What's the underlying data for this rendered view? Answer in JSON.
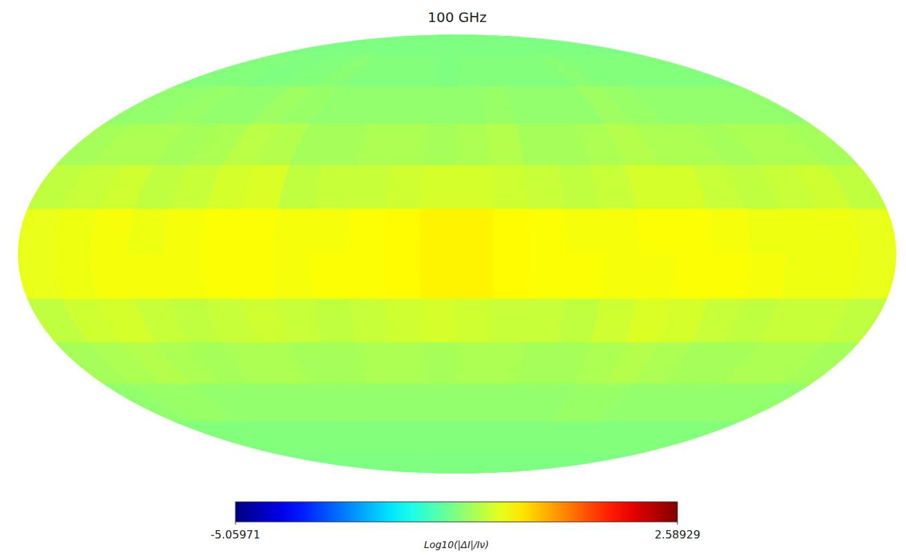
{
  "chart_data": {
    "type": "heatmap",
    "title": "100 GHz",
    "colorbar": {
      "label": "Log10(|ΔI|/Iν)",
      "range": [
        -5.05971,
        2.58929
      ],
      "ticks": [
        -5.05971,
        2.58929
      ]
    },
    "cells": [
      [
        -1.25,
        -1.25,
        -1.25,
        -1.25,
        -1.25,
        -1.25,
        -1.25,
        -1.25,
        -1.25,
        -1.25,
        -1.25,
        -1.25,
        -1.25,
        -1.25,
        -1.25,
        -1.25,
        -1.25,
        -1.25,
        -1.25,
        -1.25,
        -1.25,
        -1.25,
        -1.25,
        -1.25
      ],
      [
        -1.2,
        -1.2,
        -1.2,
        -1.25,
        -1.2,
        -1.2,
        -1.15,
        -1.2,
        -1.2,
        -1.2,
        -1.2,
        -1.25,
        -1.2,
        -1.2,
        -1.2,
        -1.2,
        -1.2,
        -1.15,
        -1.2,
        -1.2,
        -1.2,
        -1.2,
        -1.2,
        -1.2
      ],
      [
        -1.1,
        -1.1,
        -1.05,
        -1.1,
        -1.1,
        -1.0,
        -1.05,
        -1.1,
        -1.1,
        -1.1,
        -1.1,
        -1.1,
        -1.1,
        -1.05,
        -1.1,
        -1.1,
        -1.1,
        -1.0,
        -1.05,
        -1.1,
        -1.1,
        -1.1,
        -1.1,
        -1.1
      ],
      [
        -0.95,
        -0.9,
        -0.9,
        -0.95,
        -0.9,
        -0.8,
        -0.85,
        -0.95,
        -0.95,
        -0.9,
        -0.9,
        -0.95,
        -0.9,
        -0.85,
        -0.95,
        -0.95,
        -0.9,
        -0.85,
        -0.9,
        -0.9,
        -0.95,
        -0.9,
        -0.9,
        -0.95
      ],
      [
        -0.75,
        -0.7,
        -0.65,
        -0.75,
        -0.7,
        -0.6,
        -0.55,
        -0.75,
        -0.7,
        -0.7,
        -0.65,
        -0.6,
        -0.6,
        -0.65,
        -0.7,
        -0.75,
        -0.7,
        -0.6,
        -0.6,
        -0.7,
        -0.75,
        -0.7,
        -0.65,
        -0.75
      ],
      [
        -0.45,
        -0.4,
        -0.35,
        -0.4,
        -0.35,
        -0.3,
        -0.3,
        -0.35,
        -0.35,
        -0.3,
        -0.25,
        -0.2,
        -0.2,
        -0.25,
        -0.3,
        -0.35,
        -0.35,
        -0.3,
        -0.3,
        -0.35,
        -0.4,
        -0.4,
        -0.4,
        -0.45
      ],
      [
        -0.45,
        -0.4,
        -0.35,
        -0.35,
        -0.35,
        -0.3,
        -0.3,
        -0.35,
        -0.3,
        -0.3,
        -0.25,
        -0.2,
        -0.2,
        -0.25,
        -0.3,
        -0.3,
        -0.35,
        -0.35,
        -0.3,
        -0.3,
        -0.35,
        -0.4,
        -0.4,
        -0.45
      ],
      [
        -0.75,
        -0.65,
        -0.6,
        -0.7,
        -0.75,
        -0.7,
        -0.65,
        -0.7,
        -0.75,
        -0.7,
        -0.65,
        -0.6,
        -0.65,
        -0.7,
        -0.7,
        -0.75,
        -0.65,
        -0.55,
        -0.6,
        -0.7,
        -0.75,
        -0.7,
        -0.7,
        -0.75
      ],
      [
        -0.95,
        -0.9,
        -0.85,
        -0.9,
        -0.95,
        -0.9,
        -0.9,
        -0.95,
        -0.95,
        -0.9,
        -0.9,
        -0.95,
        -0.9,
        -0.9,
        -0.95,
        -0.95,
        -0.9,
        -0.85,
        -0.9,
        -0.95,
        -0.95,
        -0.9,
        -0.9,
        -0.95
      ],
      [
        -1.1,
        -1.05,
        -1.05,
        -1.1,
        -1.1,
        -1.1,
        -1.1,
        -1.1,
        -1.1,
        -1.1,
        -1.1,
        -1.1,
        -1.1,
        -1.1,
        -1.1,
        -1.1,
        -1.05,
        -1.05,
        -1.1,
        -1.1,
        -1.1,
        -1.1,
        -1.1,
        -1.1
      ],
      [
        -1.2,
        -1.2,
        -1.2,
        -1.2,
        -1.2,
        -1.2,
        -1.2,
        -1.2,
        -1.2,
        -1.2,
        -1.2,
        -1.2,
        -1.2,
        -1.2,
        -1.2,
        -1.2,
        -1.2,
        -1.2,
        -1.2,
        -1.2,
        -1.2,
        -1.2,
        -1.2,
        -1.2
      ],
      [
        -1.25,
        -1.25,
        -1.25,
        -1.25,
        -1.25,
        -1.25,
        -1.25,
        -1.25,
        -1.25,
        -1.25,
        -1.25,
        -1.25,
        -1.25,
        -1.25,
        -1.25,
        -1.25,
        -1.25,
        -1.25,
        -1.25,
        -1.25,
        -1.25,
        -1.25,
        -1.25,
        -1.25
      ]
    ]
  }
}
